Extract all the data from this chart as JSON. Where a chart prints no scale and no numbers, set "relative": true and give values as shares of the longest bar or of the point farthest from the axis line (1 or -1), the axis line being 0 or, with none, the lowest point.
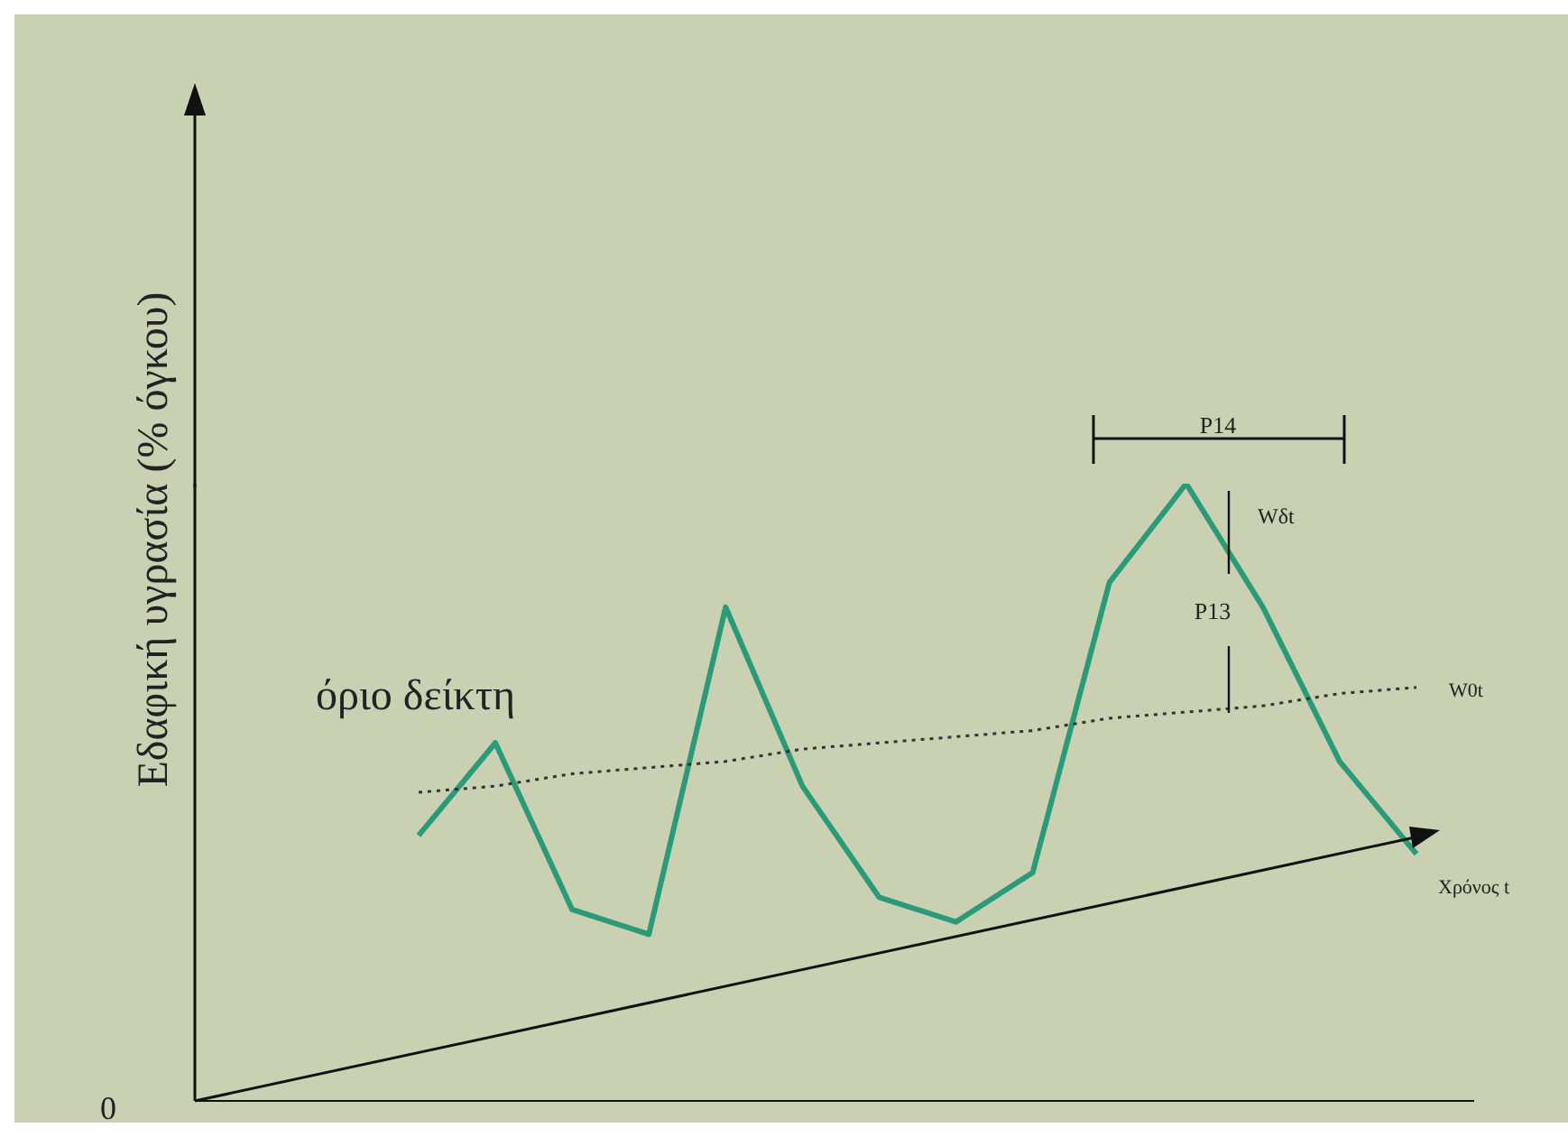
{
  "chart_data": {
    "type": "line",
    "relative": true,
    "ylabel": "Εδαφική υγρασία (% όγκου)",
    "xlabel": "Χρόνος t",
    "categories": [
      null,
      null,
      null,
      null,
      null,
      null,
      null,
      null,
      null,
      null,
      null,
      null,
      null,
      null
    ],
    "series": [
      {
        "color": "#2a9a78",
        "line_style": "solid",
        "values": [
          0.43,
          0.58,
          0.31,
          0.27,
          0.8,
          0.51,
          0.33,
          0.29,
          0.37,
          0.84,
          1,
          0.8,
          0.55,
          0.4
        ]
      },
      {
        "name": "όριο δείκτη",
        "color": "#333333",
        "line_style": "dotted",
        "values": [
          0.5,
          0.51,
          0.53,
          0.54,
          0.55,
          0.57,
          0.58,
          0.59,
          0.6,
          0.62,
          0.63,
          0.64,
          0.66,
          0.67
        ]
      }
    ],
    "annotations": [
      "0",
      "P14",
      "P13",
      "Wδt",
      "W0t"
    ],
    "legend": false,
    "grid": false,
    "marker": "none"
  }
}
